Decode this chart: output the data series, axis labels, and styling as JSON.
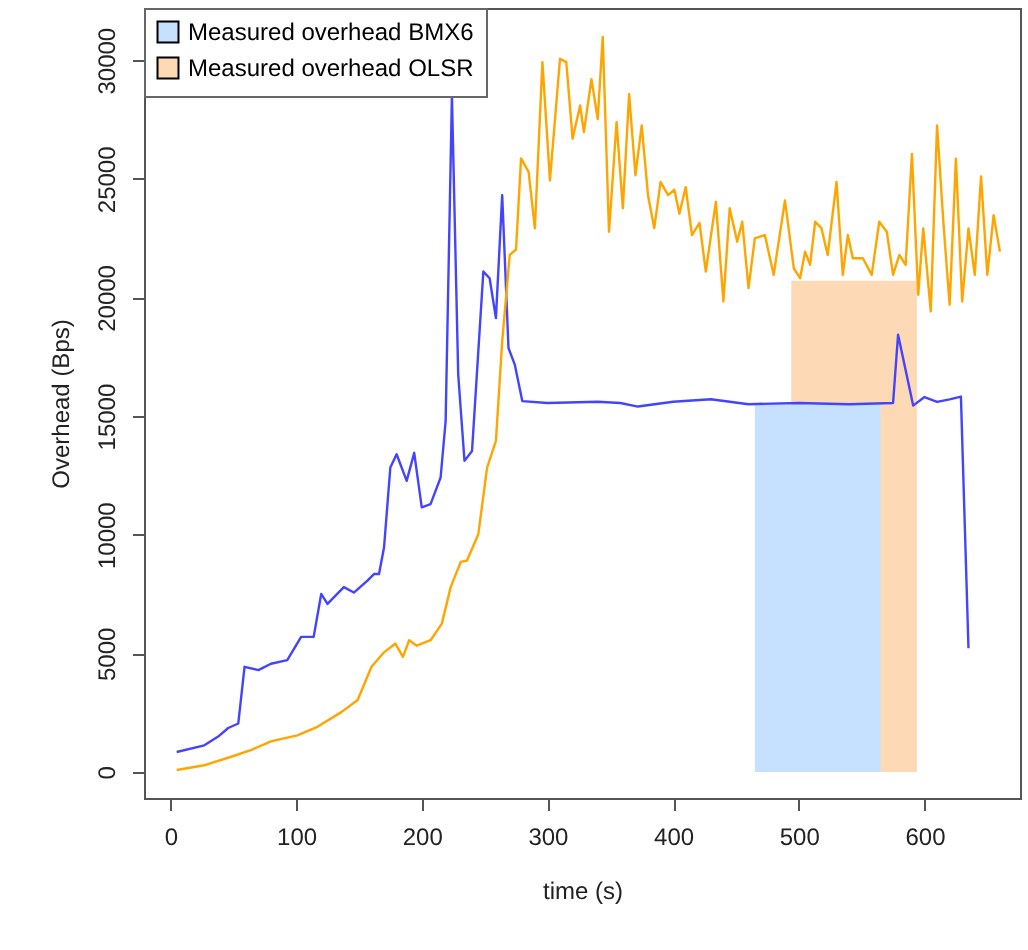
{
  "chart_data": {
    "type": "line",
    "xlabel": "time (s)",
    "ylabel": "Overhead (Bps)",
    "xlim": [
      -21,
      676
    ],
    "ylim": [
      -1100,
      32200
    ],
    "xticks": [
      0,
      100,
      200,
      300,
      400,
      500,
      600
    ],
    "yticks": [
      0,
      5000,
      10000,
      15000,
      20000,
      25000,
      30000
    ],
    "grid": false,
    "legend": "top left",
    "series": [
      {
        "name": "Measured overhead BMX6",
        "type": "area",
        "color": "#c6e0ff",
        "x": [
          465,
          565
        ],
        "values": [
          15500,
          15500
        ]
      },
      {
        "name": "Measured overhead OLSR",
        "type": "area",
        "color": "#fdd9b5",
        "x": [
          494,
          594
        ],
        "values": [
          20700,
          20700
        ]
      },
      {
        "type": "line",
        "color": "#4444ff",
        "x": [
          5,
          27,
          38,
          46,
          54,
          59,
          70,
          80,
          93,
          104,
          114,
          120,
          125,
          138,
          146,
          157,
          162,
          166,
          170,
          175,
          180,
          188,
          194,
          200,
          207,
          215,
          219,
          224,
          229,
          234,
          240,
          249,
          254,
          259,
          264,
          269,
          274,
          280,
          300,
          340,
          358,
          372,
          400,
          430,
          460,
          500,
          540,
          575,
          579,
          591,
          600,
          610,
          620,
          629,
          635
        ],
        "values": [
          840,
          1120,
          1490,
          1850,
          2040,
          4430,
          4290,
          4560,
          4710,
          5690,
          5690,
          7500,
          7080,
          7790,
          7560,
          8070,
          8340,
          8340,
          9470,
          12830,
          13390,
          12270,
          13450,
          11150,
          11290,
          12410,
          14790,
          28500,
          16750,
          13110,
          13530,
          21090,
          20810,
          19130,
          24310,
          17870,
          17170,
          15630,
          15550,
          15600,
          15550,
          15400,
          15600,
          15710,
          15500,
          15550,
          15500,
          15550,
          18430,
          15440,
          15800,
          15600,
          15700,
          15820,
          5210
        ]
      },
      {
        "type": "line",
        "color": "#ffa500",
        "x": [
          5,
          27,
          49,
          64,
          80,
          101,
          117,
          136,
          149,
          160,
          170,
          179,
          185,
          190,
          196,
          207,
          216,
          223,
          231,
          236,
          245,
          252,
          259,
          264,
          270,
          275,
          279,
          285,
          290,
          296,
          302,
          310,
          315,
          320,
          326,
          329,
          335,
          340,
          344,
          349,
          355,
          360,
          365,
          370,
          375,
          380,
          385,
          390,
          396,
          401,
          405,
          410,
          415,
          421,
          426,
          434,
          440,
          445,
          451,
          455,
          460,
          465,
          473,
          480,
          489,
          496,
          501,
          505,
          509,
          513,
          518,
          523,
          530,
          535,
          539,
          543,
          551,
          558,
          564,
          570,
          575,
          580,
          585,
          590,
          595,
          599,
          605,
          610,
          615,
          620,
          625,
          630,
          635,
          640,
          645,
          650,
          655,
          660
        ],
        "values": [
          80,
          280,
          650,
          920,
          1290,
          1540,
          1900,
          2520,
          3030,
          4430,
          5040,
          5410,
          4850,
          5550,
          5320,
          5550,
          6250,
          7790,
          8850,
          8910,
          10020,
          12830,
          13950,
          18150,
          21790,
          22020,
          25860,
          25290,
          22910,
          29920,
          24930,
          30060,
          29920,
          26690,
          28090,
          26970,
          29200,
          27520,
          30980,
          22770,
          27390,
          23760,
          28570,
          25150,
          27250,
          24310,
          22920,
          24870,
          24310,
          24540,
          23530,
          24650,
          22630,
          23140,
          21090,
          24030,
          19830,
          23760,
          22350,
          23190,
          20390,
          22490,
          22630,
          20950,
          24090,
          21230,
          20810,
          21930,
          21370,
          23190,
          22920,
          21790,
          24870,
          20950,
          22630,
          21650,
          21650,
          20950,
          23190,
          22770,
          20950,
          21790,
          21370,
          26050,
          20110,
          22910,
          19410,
          27250,
          23190,
          19690,
          25850,
          19830,
          22910,
          20950,
          25100,
          20950,
          23470,
          21930
        ]
      }
    ]
  }
}
